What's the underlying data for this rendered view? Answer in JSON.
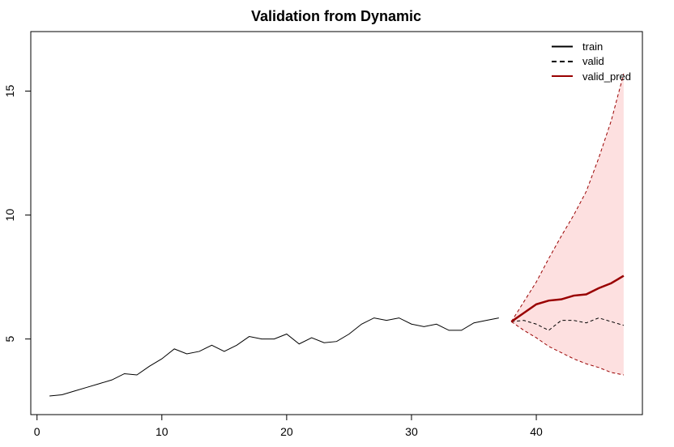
{
  "chart_data": {
    "type": "line",
    "title": "Validation from Dynamic",
    "xlabel": "",
    "ylabel": "",
    "xlim": [
      -0.5,
      48.5
    ],
    "ylim": [
      1.95,
      17.4
    ],
    "x_ticks": [
      0,
      10,
      20,
      30,
      40
    ],
    "y_ticks": [
      5,
      10,
      15
    ],
    "grid": false,
    "legend_position": "top-right",
    "colors": {
      "train": "#000000",
      "valid": "#000000",
      "valid_pred": "#990000",
      "band_fill": "#fde0e0",
      "band_line": "#990000"
    },
    "series": [
      {
        "name": "train",
        "style": "solid",
        "x": [
          1,
          2,
          3,
          4,
          5,
          6,
          7,
          8,
          9,
          10,
          11,
          12,
          13,
          14,
          15,
          16,
          17,
          18,
          19,
          20,
          21,
          22,
          23,
          24,
          25,
          26,
          27,
          28,
          29,
          30,
          31,
          32,
          33,
          34,
          35,
          36,
          37
        ],
        "y": [
          2.7,
          2.75,
          2.9,
          3.05,
          3.2,
          3.35,
          3.6,
          3.55,
          3.9,
          4.2,
          4.6,
          4.4,
          4.5,
          4.75,
          4.5,
          4.75,
          5.1,
          5.0,
          5.0,
          5.2,
          4.8,
          5.05,
          4.85,
          4.9,
          5.2,
          5.6,
          5.85,
          5.75,
          5.85,
          5.6,
          5.5,
          5.6,
          5.35,
          5.35,
          5.65,
          5.75,
          5.85
        ]
      },
      {
        "name": "valid",
        "style": "dashed",
        "x": [
          38,
          39,
          40,
          41,
          42,
          43,
          44,
          45,
          46,
          47
        ],
        "y": [
          5.7,
          5.75,
          5.6,
          5.35,
          5.75,
          5.75,
          5.65,
          5.85,
          5.7,
          5.55
        ]
      },
      {
        "name": "valid_pred",
        "style": "solid-thick",
        "x": [
          38,
          39,
          40,
          41,
          42,
          43,
          44,
          45,
          46,
          47
        ],
        "y": [
          5.7,
          6.05,
          6.4,
          6.55,
          6.6,
          6.75,
          6.8,
          7.05,
          7.25,
          7.55
        ]
      }
    ],
    "band": {
      "x": [
        38,
        39,
        40,
        41,
        42,
        43,
        44,
        45,
        46,
        47
      ],
      "lower": [
        5.7,
        5.35,
        5.05,
        4.7,
        4.45,
        4.2,
        4.0,
        3.85,
        3.65,
        3.55
      ],
      "upper": [
        5.7,
        6.5,
        7.3,
        8.25,
        9.15,
        10.0,
        10.95,
        12.3,
        13.8,
        15.7
      ]
    },
    "legend": [
      "train",
      "valid",
      "valid_pred"
    ]
  }
}
